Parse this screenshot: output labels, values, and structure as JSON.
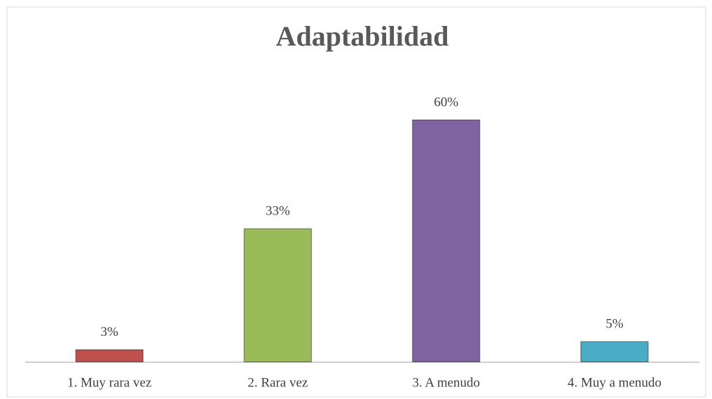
{
  "chart_data": {
    "type": "bar",
    "title": "Adaptabilidad",
    "categories": [
      "1. Muy rara vez",
      "2. Rara vez",
      "3. A menudo",
      "4. Muy a menudo"
    ],
    "values": [
      3,
      33,
      60,
      5
    ],
    "value_labels": [
      "3%",
      "33%",
      "60%",
      "5%"
    ],
    "colors": [
      "#c0504d",
      "#9bbb59",
      "#8064a2",
      "#4bacc6"
    ]
  }
}
